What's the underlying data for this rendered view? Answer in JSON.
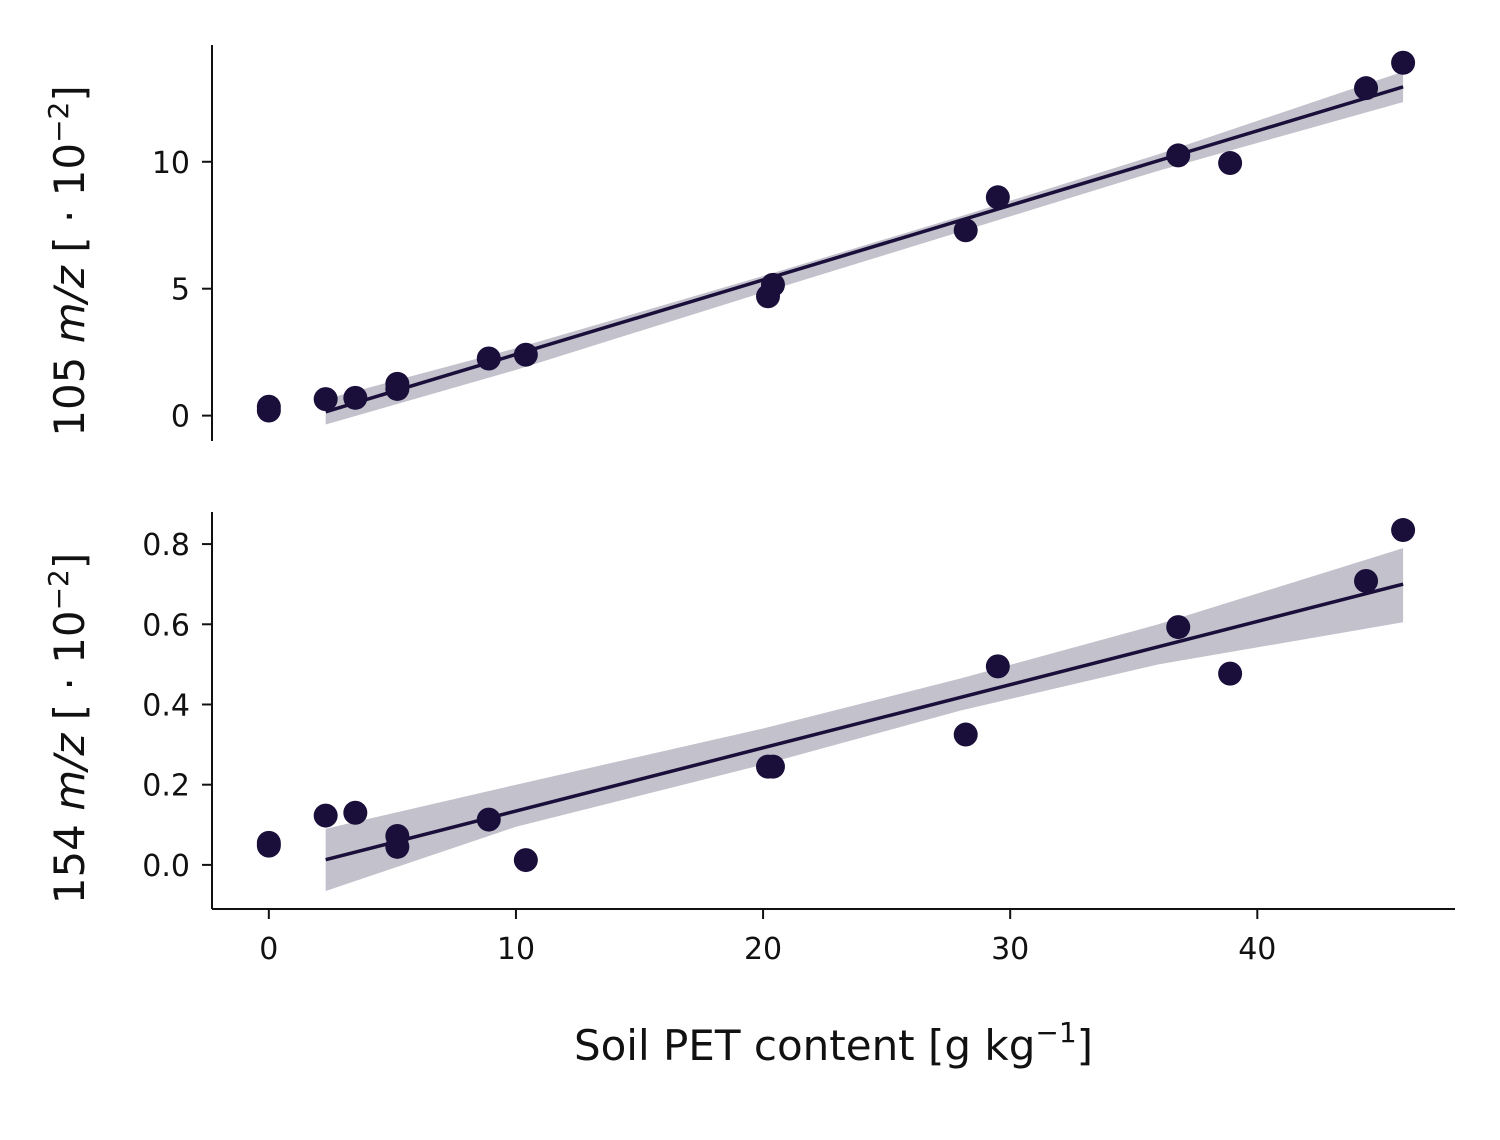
{
  "colors": {
    "points": "#1a0f3a",
    "line": "#1a0f3a",
    "band": "#c2c1cc",
    "axis": "#111111"
  },
  "chart_data": [
    {
      "type": "scatter",
      "ylabel_parts": {
        "prefix": "105 ",
        "italic": "m/z",
        "scale": " [ · 10",
        "exp": "−2",
        "close": "]"
      },
      "ylim": [
        -1,
        14.6
      ],
      "yticks": [
        0,
        5,
        10
      ],
      "yticklabels": [
        "0",
        "5",
        "10"
      ],
      "xlim": [
        -2.3,
        48
      ],
      "points": [
        {
          "x": 0,
          "y": 0.35
        },
        {
          "x": 0,
          "y": 0.2
        },
        {
          "x": 2.3,
          "y": 0.65
        },
        {
          "x": 3.5,
          "y": 0.7
        },
        {
          "x": 5.2,
          "y": 1.25
        },
        {
          "x": 5.2,
          "y": 1.05
        },
        {
          "x": 8.9,
          "y": 2.25
        },
        {
          "x": 10.4,
          "y": 2.4
        },
        {
          "x": 20.2,
          "y": 4.7
        },
        {
          "x": 20.4,
          "y": 5.15
        },
        {
          "x": 28.2,
          "y": 7.3
        },
        {
          "x": 29.5,
          "y": 8.6
        },
        {
          "x": 36.8,
          "y": 10.25
        },
        {
          "x": 38.9,
          "y": 9.95
        },
        {
          "x": 44.4,
          "y": 12.9
        },
        {
          "x": 45.9,
          "y": 13.9
        }
      ],
      "fit": {
        "x": [
          2.3,
          45.9
        ],
        "y": [
          0.15,
          12.95
        ]
      },
      "band": {
        "x": [
          2.3,
          10,
          20,
          28,
          36,
          45.9
        ],
        "upper": [
          0.65,
          2.65,
          5.5,
          7.85,
          10.3,
          13.55
        ],
        "lower": [
          -0.35,
          1.8,
          4.85,
          7.25,
          9.65,
          12.35
        ]
      }
    },
    {
      "type": "scatter",
      "ylabel_parts": {
        "prefix": "154 ",
        "italic": "m/z",
        "scale": " [ · 10",
        "exp": "−2",
        "close": "]"
      },
      "xlabel_parts": {
        "main": "Soil PET content [g kg",
        "exp": "−1",
        "close": "]"
      },
      "ylim": [
        -0.11,
        0.88
      ],
      "yticks": [
        0.0,
        0.2,
        0.4,
        0.6,
        0.8
      ],
      "yticklabels": [
        "0.0",
        "0.2",
        "0.4",
        "0.6",
        "0.8"
      ],
      "xlim": [
        -2.3,
        48
      ],
      "xticks": [
        0,
        10,
        20,
        30,
        40
      ],
      "xticklabels": [
        "0",
        "10",
        "20",
        "30",
        "40"
      ],
      "points": [
        {
          "x": 0,
          "y": 0.055
        },
        {
          "x": 0,
          "y": 0.048
        },
        {
          "x": 2.3,
          "y": 0.123
        },
        {
          "x": 3.5,
          "y": 0.13
        },
        {
          "x": 5.2,
          "y": 0.072
        },
        {
          "x": 5.2,
          "y": 0.045
        },
        {
          "x": 8.9,
          "y": 0.113
        },
        {
          "x": 10.4,
          "y": 0.012
        },
        {
          "x": 20.2,
          "y": 0.245
        },
        {
          "x": 20.4,
          "y": 0.245
        },
        {
          "x": 28.2,
          "y": 0.325
        },
        {
          "x": 29.5,
          "y": 0.495
        },
        {
          "x": 36.8,
          "y": 0.593
        },
        {
          "x": 38.9,
          "y": 0.477
        },
        {
          "x": 44.4,
          "y": 0.708
        },
        {
          "x": 45.9,
          "y": 0.835
        }
      ],
      "fit": {
        "x": [
          2.3,
          45.9
        ],
        "y": [
          0.013,
          0.7
        ]
      },
      "band": {
        "x": [
          2.3,
          10,
          20,
          28,
          36,
          45.9
        ],
        "upper": [
          0.09,
          0.2,
          0.34,
          0.465,
          0.6,
          0.79
        ],
        "lower": [
          -0.065,
          0.095,
          0.25,
          0.385,
          0.5,
          0.605
        ]
      }
    }
  ]
}
